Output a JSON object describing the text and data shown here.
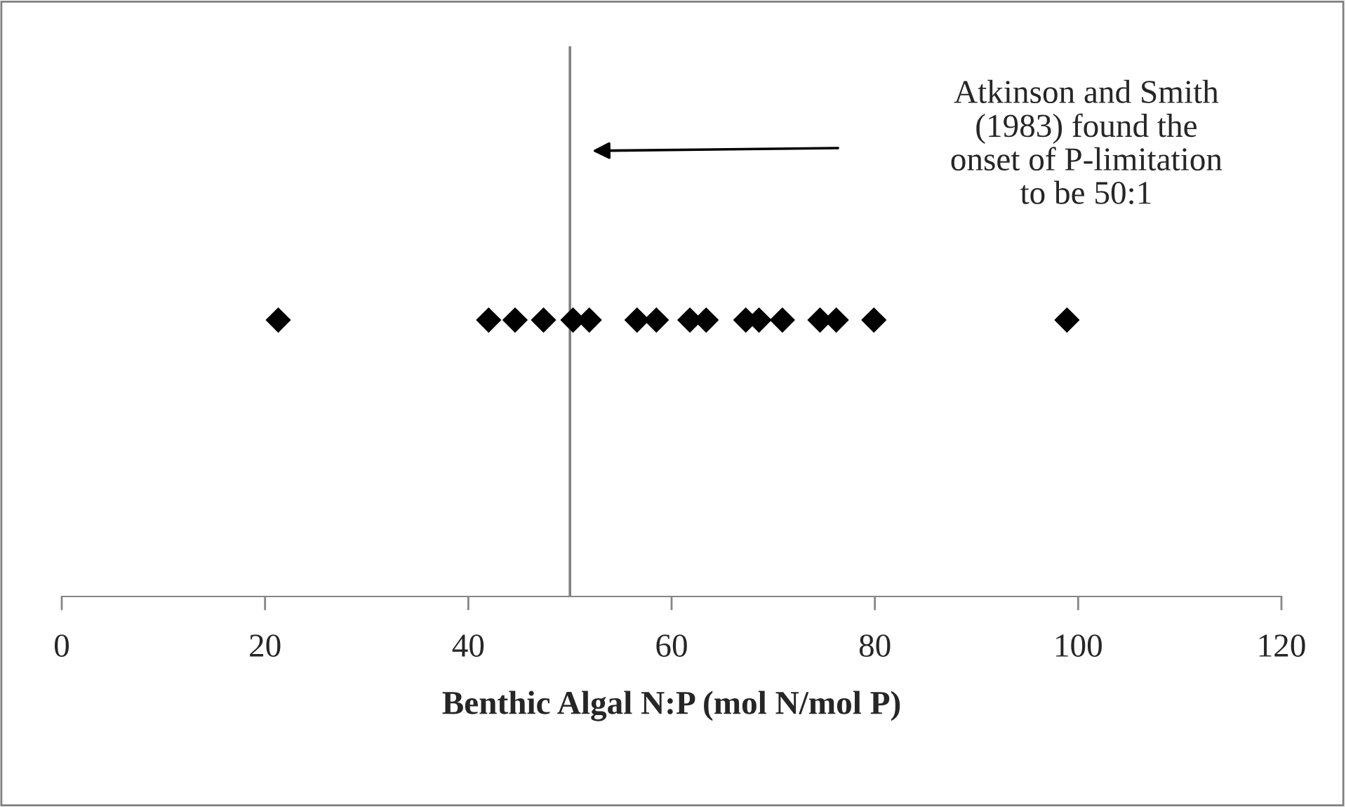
{
  "chart_data": {
    "type": "scatter",
    "orientation": "horizontal",
    "xlabel": "Benthic Algal N:P (mol N/mol P)",
    "categories": [
      null
    ],
    "series": [
      {
        "color": "#000000",
        "values": [
          21.3
        ]
      },
      {
        "color": "#000000",
        "values": [
          42.0
        ]
      },
      {
        "color": "#000000",
        "values": [
          44.6
        ]
      },
      {
        "color": "#000000",
        "values": [
          47.4
        ]
      },
      {
        "color": "#000000",
        "values": [
          50.3
        ]
      },
      {
        "color": "#000000",
        "values": [
          51.9
        ]
      },
      {
        "color": "#000000",
        "values": [
          56.6
        ]
      },
      {
        "color": "#000000",
        "values": [
          58.5
        ]
      },
      {
        "color": "#000000",
        "values": [
          61.8
        ]
      },
      {
        "color": "#000000",
        "values": [
          63.4
        ]
      },
      {
        "color": "#000000",
        "values": [
          67.3
        ]
      },
      {
        "color": "#000000",
        "values": [
          68.6
        ]
      },
      {
        "color": "#000000",
        "values": [
          70.9
        ]
      },
      {
        "color": "#000000",
        "values": [
          74.6
        ]
      },
      {
        "color": "#000000",
        "values": [
          76.2
        ]
      },
      {
        "color": "#000000",
        "values": [
          79.9
        ]
      },
      {
        "color": "#000000",
        "values": [
          98.9
        ]
      }
    ],
    "marker": "diamond",
    "xlim": [
      0,
      120
    ],
    "xticks": [
      0,
      20,
      40,
      60,
      80,
      100,
      120
    ],
    "ref_lines": [
      {
        "axis": "x",
        "value": 50,
        "color": "#808080"
      }
    ],
    "annotations": [
      "Atkinson and Smith\n(1983) found the\nonset of P-limitation\nto be 50:1"
    ],
    "grid": false,
    "legend": false
  }
}
